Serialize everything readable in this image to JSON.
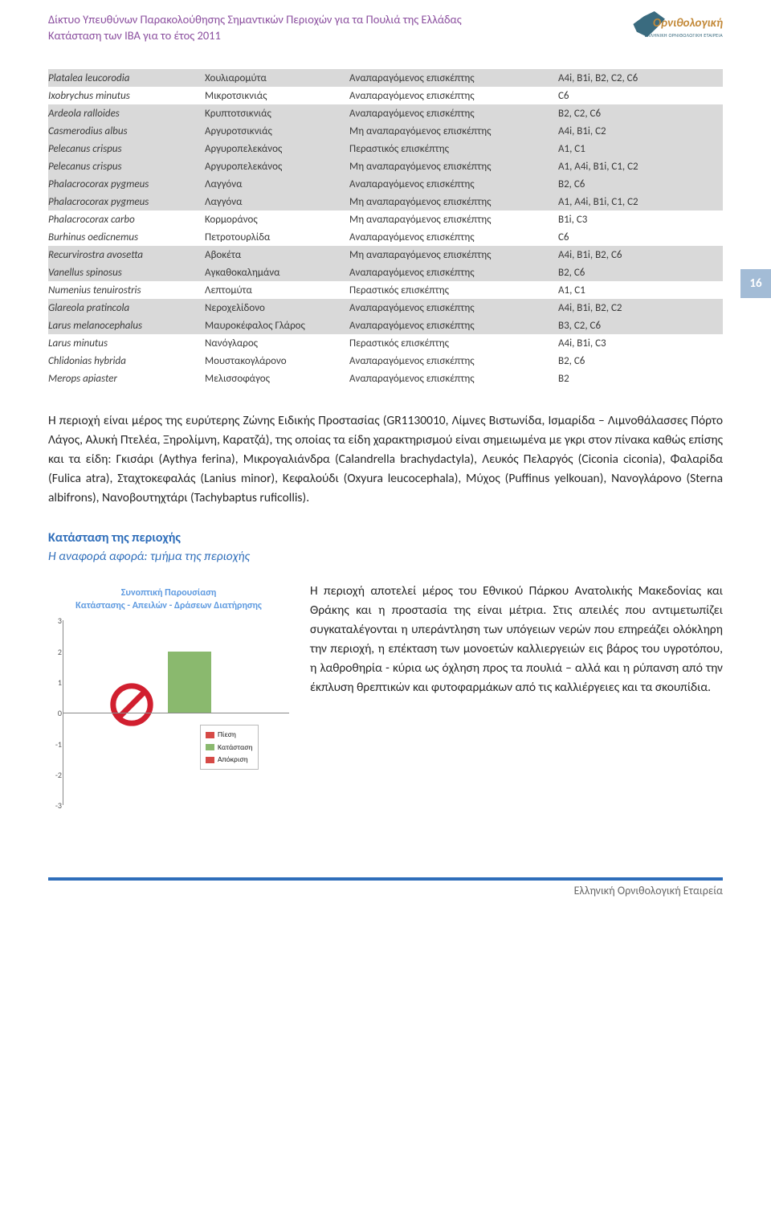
{
  "header": {
    "line1": "Δίκτυο Υπευθύνων Παρακολούθησης Σημαντικών Περιοχών για τα Πουλιά της Ελλάδας",
    "line2": "Κατάσταση των ΙΒΑ για το έτος 2011",
    "logo_text": "Ορνιθολογική",
    "logo_sub": "ΕΛΛΗΝΙΚΗ ΟΡΝΙΘΟΛΟΓΙΚΗ ΕΤΑΙΡΕΙΑ"
  },
  "page_number": "16",
  "species": [
    {
      "sci": "Platalea leucorodia",
      "gr": "Χουλιαρομύτα",
      "stat": "Αναπαραγόμενος επισκέπτης",
      "crit": "A4i, B1i, B2, C2, C6",
      "hl": true
    },
    {
      "sci": "Ixobrychus minutus",
      "gr": "Μικροτσικνιάς",
      "stat": "Αναπαραγόμενος επισκέπτης",
      "crit": "C6",
      "hl": false
    },
    {
      "sci": "Ardeola ralloides",
      "gr": "Κρυπτοτσικνιάς",
      "stat": "Αναπαραγόμενος επισκέπτης",
      "crit": "B2, C2, C6",
      "hl": true
    },
    {
      "sci": "Casmerodius albus",
      "gr": "Αργυροτσικνιάς",
      "stat": "Μη αναπαραγόμενος επισκέπτης",
      "crit": "A4i, B1i, C2",
      "hl": true
    },
    {
      "sci": "Pelecanus crispus",
      "gr": "Αργυροπελεκάνος",
      "stat": "Περαστικός επισκέπτης",
      "crit": "A1, C1",
      "hl": true
    },
    {
      "sci": "Pelecanus crispus",
      "gr": "Αργυροπελεκάνος",
      "stat": "Μη αναπαραγόμενος επισκέπτης",
      "crit": "A1, A4i, B1i, C1, C2",
      "hl": true
    },
    {
      "sci": "Phalacrocorax pygmeus",
      "gr": "Λαγγόνα",
      "stat": "Αναπαραγόμενος επισκέπτης",
      "crit": "B2, C6",
      "hl": true
    },
    {
      "sci": "Phalacrocorax pygmeus",
      "gr": "Λαγγόνα",
      "stat": "Μη αναπαραγόμενος επισκέπτης",
      "crit": "A1, A4i, B1i, C1, C2",
      "hl": true
    },
    {
      "sci": "Phalacrocorax carbo",
      "gr": "Κορμοράνος",
      "stat": "Μη αναπαραγόμενος επισκέπτης",
      "crit": "B1i, C3",
      "hl": false
    },
    {
      "sci": "Burhinus oedicnemus",
      "gr": "Πετροτουρλίδα",
      "stat": "Αναπαραγόμενος επισκέπτης",
      "crit": "C6",
      "hl": false
    },
    {
      "sci": "Recurvirostra avosetta",
      "gr": "Αβοκέτα",
      "stat": "Μη αναπαραγόμενος επισκέπτης",
      "crit": "A4i, B1i, B2, C6",
      "hl": true
    },
    {
      "sci": "Vanellus spinosus",
      "gr": "Αγκαθοκαλημάνα",
      "stat": "Αναπαραγόμενος επισκέπτης",
      "crit": "B2, C6",
      "hl": true
    },
    {
      "sci": "Numenius tenuirostris",
      "gr": "Λεπτομύτα",
      "stat": "Περαστικός επισκέπτης",
      "crit": "A1, C1",
      "hl": false
    },
    {
      "sci": "Glareola pratincola",
      "gr": "Νεροχελίδονο",
      "stat": "Αναπαραγόμενος επισκέπτης",
      "crit": "A4i, B1i, B2, C2",
      "hl": true
    },
    {
      "sci": "Larus melanocephalus",
      "gr": "Μαυροκέφαλος Γλάρος",
      "stat": "Αναπαραγόμενος επισκέπτης",
      "crit": "B3, C2, C6",
      "hl": true
    },
    {
      "sci": "Larus minutus",
      "gr": "Νανόγλαρος",
      "stat": "Περαστικός επισκέπτης",
      "crit": "A4i, B1i, C3",
      "hl": false
    },
    {
      "sci": "Chlidonias hybrida",
      "gr": "Μουστακογλάρονο",
      "stat": "Αναπαραγόμενος επισκέπτης",
      "crit": "B2, C6",
      "hl": false
    },
    {
      "sci": "Merops apiaster",
      "gr": "Μελισσοφάγος",
      "stat": "Αναπαραγόμενος επισκέπτης",
      "crit": "B2",
      "hl": false
    }
  ],
  "paragraph": "Η περιοχή είναι μέρος της ευρύτερης Ζώνης Ειδικής Προστασίας (GR1130010, Λίμνες Βιστωνίδα, Ισμαρίδα – Λιμνοθάλασσες Πόρτο Λάγος, Αλυκή Πτελέα, Ξηρολίμνη, Καρατζά), της οποίας τα είδη χαρακτηρισμού είναι σημειωμένα με γκρι στον πίνακα καθώς επίσης και τα είδη: Γκισάρι (Aythya ferina), Μικρογαλιάνδρα (Calandrella brachydactyla), Λευκός Πελαργός (Ciconia ciconia), Φαλαρίδα (Fulica atra), Σταχτοκεφαλάς (Lanius minor), Κεφαλούδι (Oxyura leucocephala), Μύχος (Puffinus yelkouan), Νανογλάρονο (Sterna albifrons), Νανοβουτηχτάρι (Tachybaptus ruficollis).",
  "section": {
    "head1": "Κατάσταση της περιοχής",
    "head2": "Η αναφορά αφορά: τμήμα της περιοχής"
  },
  "chart": {
    "title_l1": "Συνοπτική Παρουσίαση",
    "title_l2": "Κατάστασης - Απειλών - Δράσεων Διατήρησης",
    "ylim_min": -3,
    "ylim_max": 3,
    "yticks": [
      "3",
      "2",
      "1",
      "0",
      "-1",
      "-2",
      "-3"
    ],
    "series": [
      {
        "label": "Πίεση",
        "color": "#d64a46",
        "value": null
      },
      {
        "label": "Κατάσταση",
        "color": "#8ab96e",
        "value": 2
      },
      {
        "label": "Απόκριση",
        "color": "#d64a46",
        "value": null
      }
    ],
    "axis_color": "#888888",
    "bg": "#ffffff"
  },
  "lower_text": "Η περιοχή αποτελεί μέρος του Εθνικού Πάρκου Ανατολικής Μακεδονίας και Θράκης και η προστασία της είναι μέτρια. Στις απειλές που αντιμετωπίζει συγκαταλέγονται η υπεράντληση των υπόγειων νερών που επηρεάζει ολόκληρη την περιοχή, η επέκταση των μονοετών καλλιεργειών εις βάρος του υγροτόπου, η λαθροθηρία - κύρια ως όχληση προς τα πουλιά – αλλά και η ρύπανση από την έκπλυση θρεπτικών και φυτοφαρμάκων από τις καλλιέργειες και τα σκουπίδια.",
  "footer": "Ελληνική Ορνιθολογική Εταιρεία",
  "colors": {
    "purple": "#8b4f9f",
    "blue": "#2f6eba",
    "badge_bg": "#a3bcd6",
    "hl_bg": "#d9d9d9",
    "prohibit": "#d11f2f"
  }
}
